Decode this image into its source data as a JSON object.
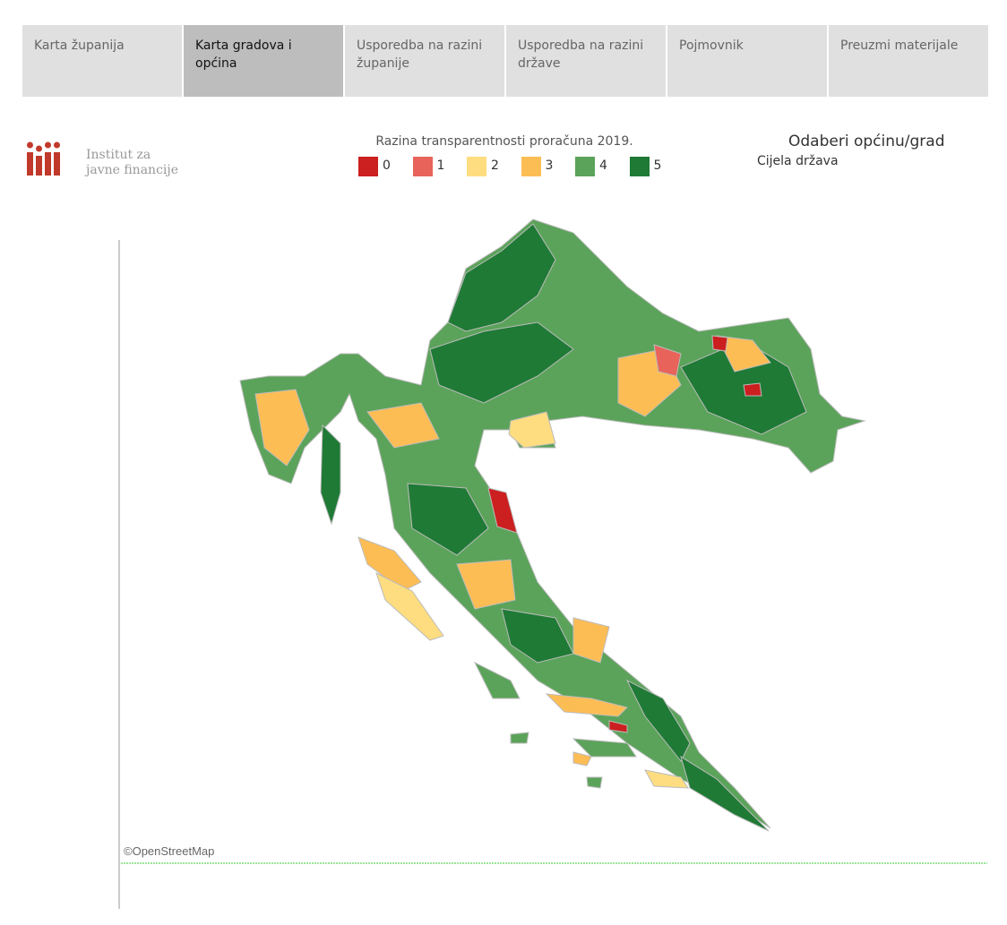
{
  "nav": {
    "tabs": [
      "Karta županija",
      "Karta gradova i općina",
      "Usporedba na razini županije",
      "Usporedba na razini države",
      "Pojmovnik",
      "Preuzmi materijale"
    ]
  },
  "logo": {
    "line1": "Institut za",
    "line2": "javne financije"
  },
  "legend": {
    "title": "Razina transparentnosti proračuna 2019.",
    "items": [
      {
        "label": "0",
        "color": "#cc1f1f"
      },
      {
        "label": "1",
        "color": "#e8645a"
      },
      {
        "label": "2",
        "color": "#fedd80"
      },
      {
        "label": "3",
        "color": "#fdbd55"
      },
      {
        "label": "4",
        "color": "#5ba35a"
      },
      {
        "label": "5",
        "color": "#1f7a35"
      }
    ]
  },
  "selector": {
    "title": "Odaberi općinu/grad",
    "value": "Cijela država"
  },
  "map": {
    "attribution": "©OpenStreetMap"
  }
}
